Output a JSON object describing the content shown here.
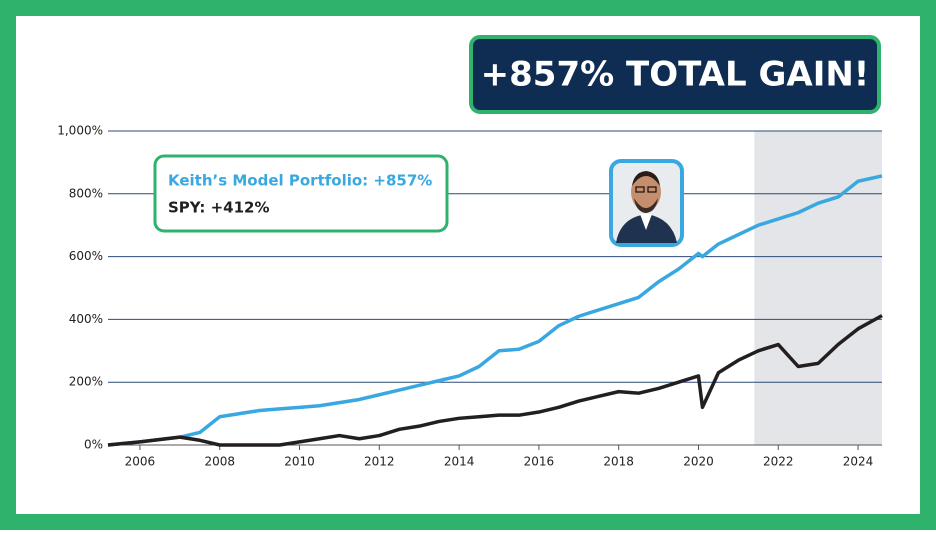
{
  "chart_data": {
    "type": "line",
    "banner": "+857% TOTAL GAIN!",
    "x": [
      2005.2,
      2006,
      2007,
      2007.5,
      2008,
      2009,
      2009.5,
      2010,
      2010.5,
      2011,
      2011.5,
      2012,
      2012.5,
      2013,
      2013.5,
      2014,
      2014.5,
      2015,
      2015.5,
      2016,
      2016.5,
      2017,
      2017.5,
      2018,
      2018.5,
      2019,
      2019.5,
      2020,
      2020.1,
      2020.5,
      2021,
      2021.5,
      2022,
      2022.5,
      2023,
      2023.5,
      2024,
      2024.6
    ],
    "series": [
      {
        "name": "Keith’s Model Portfolio: +857%",
        "color": "#3aa8e0",
        "values": [
          0,
          10,
          25,
          40,
          90,
          110,
          115,
          120,
          125,
          135,
          145,
          160,
          175,
          190,
          205,
          220,
          250,
          300,
          305,
          330,
          380,
          410,
          430,
          450,
          470,
          520,
          560,
          610,
          600,
          640,
          670,
          700,
          720,
          740,
          770,
          790,
          840,
          857
        ]
      },
      {
        "name": "SPY: +412%",
        "color": "#231f20",
        "values": [
          0,
          10,
          25,
          15,
          0,
          0,
          0,
          10,
          20,
          30,
          20,
          30,
          50,
          60,
          75,
          85,
          90,
          95,
          95,
          105,
          120,
          140,
          155,
          170,
          165,
          180,
          200,
          220,
          120,
          230,
          270,
          300,
          320,
          250,
          260,
          320,
          370,
          412
        ]
      }
    ],
    "xlim": [
      2005.2,
      2024.6
    ],
    "xticks": [
      2006,
      2008,
      2010,
      2012,
      2014,
      2016,
      2018,
      2020,
      2022,
      2024
    ],
    "ylim": [
      0,
      1000
    ],
    "yticks": [
      {
        "value": 0,
        "label": "0%"
      },
      {
        "value": 200,
        "label": "200%"
      },
      {
        "value": 400,
        "label": "400%"
      },
      {
        "value": 600,
        "label": "600%"
      },
      {
        "value": 800,
        "label": "800%"
      },
      {
        "value": 1000,
        "label": "1,000%"
      }
    ],
    "highlight_xlim": [
      2021.4,
      2024.6
    ],
    "grid": true
  }
}
